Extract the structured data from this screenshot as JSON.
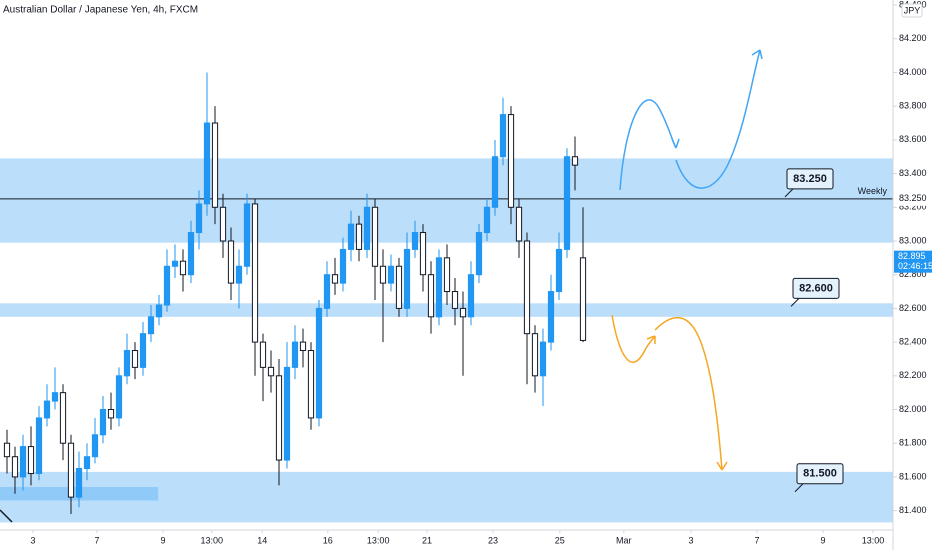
{
  "chart_data": {
    "type": "candlestick",
    "title": "Australian Dollar / Japanese Yen, 4h, FXCM",
    "currency": "JPY",
    "up_color": "#2196f3",
    "down_color": "#ffffff",
    "xlim": [
      -0.875,
      110.75
    ],
    "ylim": [
      81.285,
      84.43
    ],
    "xticks": [
      {
        "value": 3.25,
        "label": "3"
      },
      {
        "value": 11.25,
        "label": "7"
      },
      {
        "value": 19.5,
        "label": "9"
      },
      {
        "value": 25.6,
        "label": "13:00"
      },
      {
        "value": 31.9,
        "label": "14"
      },
      {
        "value": 40.1,
        "label": "16"
      },
      {
        "value": 46.4,
        "label": "13:00"
      },
      {
        "value": 52.5,
        "label": "21"
      },
      {
        "value": 60.75,
        "label": "23"
      },
      {
        "value": 69.1,
        "label": "25"
      },
      {
        "value": 77.1,
        "label": "Mar"
      },
      {
        "value": 85.5,
        "label": "3"
      },
      {
        "value": 93.75,
        "label": "7"
      },
      {
        "value": 102,
        "label": "9"
      },
      {
        "value": 108.25,
        "label": "13:00"
      }
    ],
    "yticks": [
      {
        "value": 81.4,
        "label": "81.400"
      },
      {
        "value": 81.6,
        "label": "81.600"
      },
      {
        "value": 81.8,
        "label": "81.800"
      },
      {
        "value": 82,
        "label": "82.000"
      },
      {
        "value": 82.2,
        "label": "82.200"
      },
      {
        "value": 82.4,
        "label": "82.400"
      },
      {
        "value": 82.6,
        "label": "82.600"
      },
      {
        "value": 82.8,
        "label": "82.800"
      },
      {
        "value": 83,
        "label": "83.000"
      },
      {
        "value": 83.2,
        "label": "83.200"
      },
      {
        "value": 83.4,
        "label": "83.400"
      },
      {
        "value": 83.6,
        "label": "83.600"
      },
      {
        "value": 83.8,
        "label": "83.800"
      },
      {
        "value": 84,
        "label": "84.000"
      },
      {
        "value": 84.2,
        "label": "84.200"
      },
      {
        "value": 84.4,
        "label": "84.400"
      }
    ],
    "open": [
      81.8,
      81.72,
      81.6,
      81.78,
      81.62,
      81.95,
      82.05,
      82.1,
      81.8,
      81.48,
      81.65,
      81.72,
      81.85,
      82.0,
      81.95,
      82.2,
      82.35,
      82.25,
      82.45,
      82.55,
      82.62,
      82.85,
      82.88,
      82.8,
      83.05,
      83.22,
      83.7,
      83.2,
      83.0,
      82.75,
      82.85,
      83.22,
      82.4,
      82.25,
      82.2,
      81.7,
      82.25,
      82.4,
      82.35,
      81.95,
      82.6,
      82.8,
      82.75,
      82.95,
      83.1,
      82.95,
      83.2,
      82.85,
      82.75,
      82.85,
      82.6,
      82.95,
      83.05,
      82.8,
      82.55,
      82.9,
      82.7,
      82.6,
      82.55,
      82.8,
      83.05,
      83.2,
      83.5,
      83.75,
      83.2,
      83.0,
      82.45,
      82.2,
      82.4,
      82.7,
      82.95,
      83.5,
      82.9
    ],
    "high": [
      81.88,
      81.78,
      81.85,
      81.9,
      82.02,
      82.15,
      82.25,
      82.15,
      81.85,
      81.75,
      81.8,
      81.95,
      82.08,
      82.1,
      82.25,
      82.45,
      82.4,
      82.52,
      82.62,
      82.68,
      82.95,
      82.98,
      82.95,
      83.12,
      83.3,
      84.0,
      83.8,
      83.28,
      83.08,
      82.95,
      83.28,
      83.25,
      82.45,
      82.35,
      82.3,
      82.4,
      82.5,
      82.48,
      82.4,
      82.65,
      82.88,
      82.9,
      83.02,
      83.18,
      83.15,
      83.28,
      83.25,
      82.95,
      82.92,
      82.9,
      83.05,
      83.12,
      83.1,
      82.88,
      82.95,
      82.98,
      82.78,
      82.7,
      82.88,
      83.1,
      83.25,
      83.6,
      83.85,
      83.8,
      83.25,
      83.05,
      82.5,
      82.48,
      82.8,
      83.05,
      83.55,
      83.62,
      83.2
    ],
    "low": [
      81.62,
      81.5,
      81.52,
      81.55,
      81.58,
      81.9,
      82.0,
      81.7,
      81.38,
      81.42,
      81.58,
      81.68,
      81.8,
      81.88,
      81.9,
      82.15,
      82.18,
      82.2,
      82.4,
      82.5,
      82.58,
      82.78,
      82.7,
      82.75,
      82.95,
      83.15,
      83.1,
      82.9,
      82.65,
      82.6,
      82.8,
      82.2,
      82.05,
      82.1,
      81.55,
      81.65,
      82.18,
      82.25,
      81.88,
      81.9,
      82.55,
      82.68,
      82.7,
      82.88,
      82.88,
      82.9,
      82.65,
      82.4,
      82.7,
      82.55,
      82.55,
      82.9,
      82.7,
      82.45,
      82.5,
      82.62,
      82.5,
      82.2,
      82.5,
      82.75,
      83.0,
      83.15,
      83.45,
      83.1,
      82.9,
      82.15,
      82.1,
      82.02,
      82.35,
      82.65,
      82.9,
      83.3,
      82.4
    ],
    "close": [
      81.72,
      81.6,
      81.78,
      81.62,
      81.95,
      82.05,
      82.1,
      81.8,
      81.48,
      81.65,
      81.72,
      81.85,
      82.0,
      81.95,
      82.2,
      82.35,
      82.25,
      82.45,
      82.55,
      82.62,
      82.85,
      82.88,
      82.8,
      83.05,
      83.22,
      83.7,
      83.2,
      83.0,
      82.75,
      82.85,
      83.22,
      82.4,
      82.25,
      82.2,
      81.7,
      82.25,
      82.4,
      82.35,
      81.95,
      82.6,
      82.8,
      82.75,
      82.95,
      83.1,
      82.95,
      83.2,
      82.85,
      82.75,
      82.85,
      82.6,
      82.95,
      83.05,
      82.8,
      82.55,
      82.9,
      82.7,
      82.6,
      82.55,
      82.8,
      83.05,
      83.2,
      83.5,
      83.75,
      83.2,
      83.0,
      82.45,
      82.2,
      82.4,
      82.7,
      82.95,
      83.5,
      83.45,
      82.41
    ],
    "zones": [
      {
        "from": 82.99,
        "to": 83.49,
        "color": "#bbdefb"
      },
      {
        "from": 82.55,
        "to": 82.63,
        "color": "#bbdefb"
      },
      {
        "from": 81.33,
        "to": 81.63,
        "color": "#bbdefb"
      },
      {
        "from": 81.46,
        "to": 81.54,
        "color": "#90caf9",
        "xrange": [
          -0.875,
          18.9
        ]
      }
    ],
    "weekly_line": {
      "value": 83.25,
      "label": "Weekly"
    },
    "levels": [
      {
        "value": 83.25,
        "label": "83.250"
      },
      {
        "value": 82.6,
        "label": "82.600"
      },
      {
        "value": 81.5,
        "label": "81.500"
      }
    ],
    "price_tag": {
      "value": 82.895,
      "label": "82.895",
      "countdown": "02:46:15"
    }
  }
}
